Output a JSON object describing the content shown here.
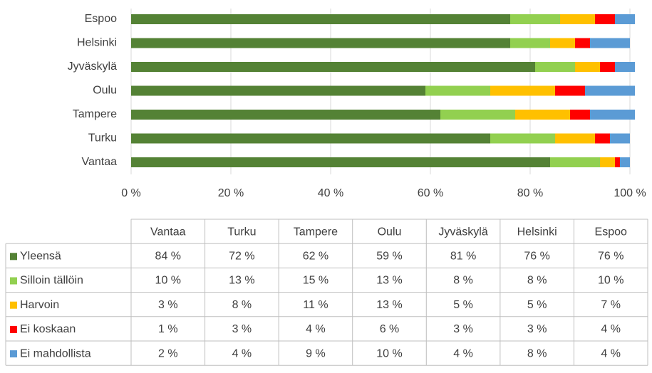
{
  "chart_data": {
    "type": "stacked-bar-horizontal",
    "categories": [
      "Vantaa",
      "Turku",
      "Tampere",
      "Oulu",
      "Jyväskylä",
      "Helsinki",
      "Espoo"
    ],
    "series": [
      {
        "name": "Yleensä",
        "color": "#548235",
        "values": [
          84,
          72,
          62,
          59,
          81,
          76,
          76
        ],
        "value_labels": [
          "84 %",
          "72 %",
          "62 %",
          "59 %",
          "81 %",
          "76 %",
          "76 %"
        ]
      },
      {
        "name": "Silloin tällöin",
        "color": "#92d050",
        "values": [
          10,
          13,
          15,
          13,
          8,
          8,
          10
        ],
        "value_labels": [
          "10 %",
          "13 %",
          "15 %",
          "13 %",
          "8 %",
          "8 %",
          "10 %"
        ]
      },
      {
        "name": "Harvoin",
        "color": "#ffc000",
        "values": [
          3,
          8,
          11,
          13,
          5,
          5,
          7
        ],
        "value_labels": [
          "3 %",
          "8 %",
          "11 %",
          "13 %",
          "5 %",
          "5 %",
          "7 %"
        ]
      },
      {
        "name": "Ei koskaan",
        "color": "#ff0000",
        "values": [
          1,
          3,
          4,
          6,
          3,
          3,
          4
        ],
        "value_labels": [
          "1 %",
          "3 %",
          "4 %",
          "6 %",
          "3 %",
          "3 %",
          "4 %"
        ]
      },
      {
        "name": "Ei mahdollista",
        "color": "#5b9bd5",
        "values": [
          2,
          4,
          9,
          10,
          4,
          8,
          4
        ],
        "value_labels": [
          "2 %",
          "4 %",
          "9 %",
          "10 %",
          "4 %",
          "8 %",
          "4 %"
        ]
      }
    ],
    "xlim": [
      0,
      100
    ],
    "xticks": [
      {
        "value": 0,
        "label": "0 %"
      },
      {
        "value": 20,
        "label": "20 %"
      },
      {
        "value": 40,
        "label": "40 %"
      },
      {
        "value": 60,
        "label": "60 %"
      },
      {
        "value": 80,
        "label": "80 %"
      },
      {
        "value": 100,
        "label": "100 %"
      }
    ],
    "grid": true
  }
}
